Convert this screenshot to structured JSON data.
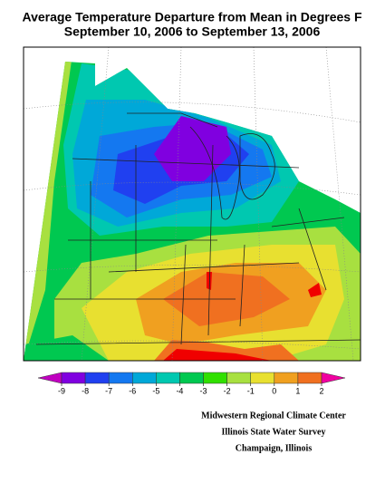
{
  "header": {
    "title_lines": [
      "Average Temperature Departure from Mean in Degrees F",
      "September 10, 2006 to September 13, 2006"
    ]
  },
  "colorbar": {
    "ticks": [
      -9,
      -8,
      -7,
      -6,
      -5,
      -4,
      -3,
      -2,
      -1,
      0,
      1,
      2
    ],
    "colors": [
      "#c000c0",
      "#8000e0",
      "#2040f0",
      "#1478f0",
      "#00a8d8",
      "#00c8b0",
      "#00c850",
      "#30e000",
      "#a8e040",
      "#e8e030",
      "#f0a020",
      "#f07020",
      "#f00000",
      "#f000a0"
    ]
  },
  "credits": [
    "Midwestern Regional Climate Center",
    "Illinois State Water Survey",
    "Champaign, Illinois"
  ]
}
